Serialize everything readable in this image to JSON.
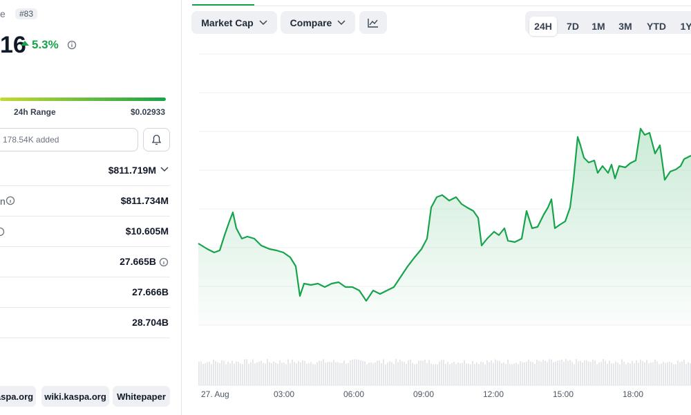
{
  "header": {
    "name_fragment": "e",
    "rank": "#83",
    "price_fragment": "16",
    "change": "5.3%"
  },
  "range": {
    "label": "24h Range",
    "high": "$0.02933"
  },
  "watchlist": {
    "added": "178.54K added"
  },
  "stats": {
    "market_cap": "$811.719M",
    "fdv_label_fragment": "n",
    "fdv": "$811.734M",
    "volume": "$10.605M",
    "circulating": "27.665B",
    "total": "27.666B",
    "max": "28.704B"
  },
  "links": [
    "aspa.org",
    "wiki.kaspa.org",
    "Whitepaper"
  ],
  "toolbar": {
    "metric": "Market Cap",
    "compare": "Compare",
    "ranges": [
      "24H",
      "7D",
      "1M",
      "3M",
      "YTD",
      "1Y"
    ]
  },
  "x_labels": [
    "27. Aug",
    "03:00",
    "06:00",
    "09:00",
    "12:00",
    "15:00",
    "18:00"
  ]
}
